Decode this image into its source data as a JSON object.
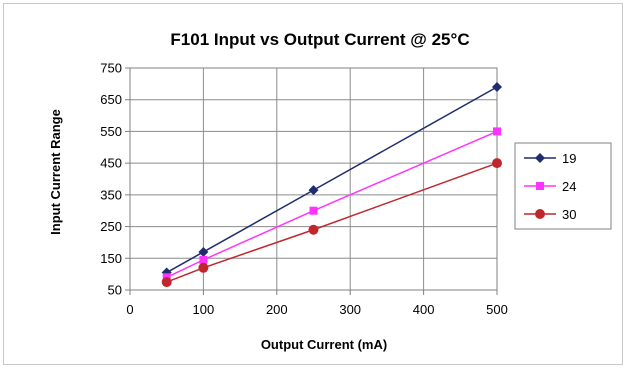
{
  "chart_data": {
    "type": "line",
    "title": "F101 Input vs Output Current @ 25°C",
    "xlabel": "Output Current (mA)",
    "ylabel": "Input Current Range",
    "xlim": [
      0,
      500
    ],
    "ylim": [
      50,
      750
    ],
    "x_ticks": [
      0,
      100,
      200,
      300,
      400,
      500
    ],
    "y_ticks": [
      50,
      150,
      250,
      350,
      450,
      550,
      650,
      750
    ],
    "grid": true,
    "legend_position": "right",
    "series": [
      {
        "name": "19",
        "color": "#1f2d6e",
        "marker": "diamond",
        "x": [
          50,
          100,
          250,
          500
        ],
        "y": [
          105,
          170,
          365,
          690
        ]
      },
      {
        "name": "24",
        "color": "#ff33ff",
        "marker": "square",
        "x": [
          50,
          100,
          250,
          500
        ],
        "y": [
          90,
          145,
          300,
          550
        ]
      },
      {
        "name": "30",
        "color": "#c0272d",
        "marker": "circle",
        "x": [
          50,
          100,
          250,
          500
        ],
        "y": [
          75,
          120,
          240,
          450
        ]
      }
    ]
  }
}
